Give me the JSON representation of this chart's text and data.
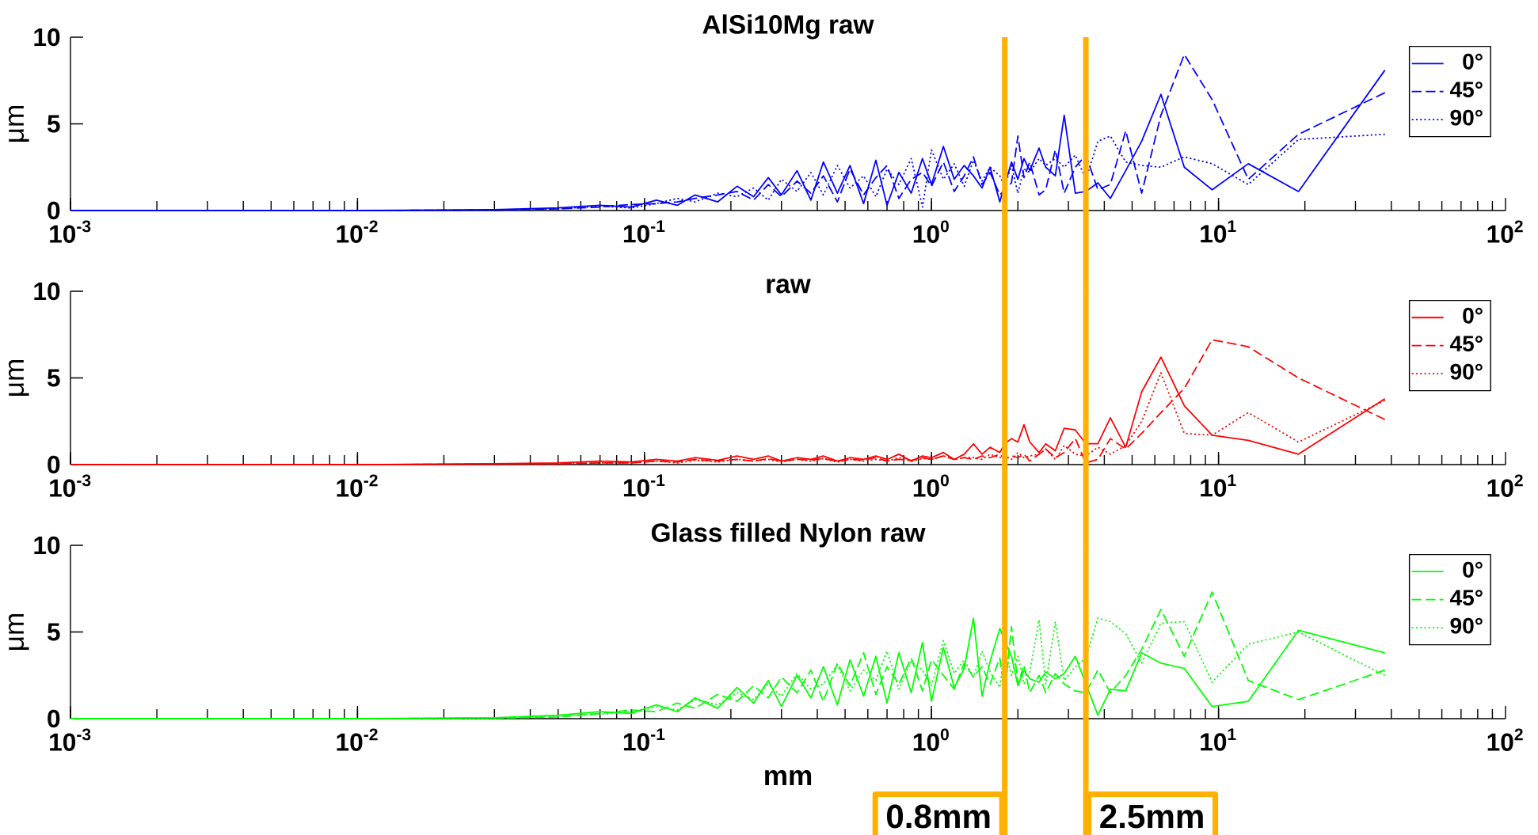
{
  "chart_data": [
    {
      "type": "line",
      "title": "AlSi10Mg raw",
      "ylabel": "μm",
      "log": "x",
      "legend": "top right",
      "xlim": [
        0.001,
        100
      ],
      "ylim": [
        0,
        10
      ],
      "xticks": [
        {
          "value": 0.001,
          "label": "10$^{-3}$"
        },
        {
          "value": 0.01,
          "label": "10$^{-2}$"
        },
        {
          "value": 0.1,
          "label": "10$^{-1}$"
        },
        {
          "value": 1,
          "label": "10$^{0}$"
        },
        {
          "value": 10,
          "label": "10$^{1}$"
        },
        {
          "value": 100,
          "label": "10$^{2}$"
        }
      ],
      "yticks": [
        0,
        5,
        10
      ],
      "x": [
        0.001,
        0.01,
        0.03,
        0.05,
        0.07,
        0.09,
        0.11,
        0.13,
        0.15,
        0.18,
        0.21,
        0.24,
        0.27,
        0.3,
        0.34,
        0.38,
        0.42,
        0.47,
        0.52,
        0.58,
        0.64,
        0.7,
        0.77,
        0.85,
        0.93,
        1.0,
        1.1,
        1.2,
        1.3,
        1.4,
        1.5,
        1.6,
        1.73,
        1.8,
        1.9,
        2.0,
        2.1,
        2.2,
        2.37,
        2.5,
        2.7,
        2.9,
        3.17,
        3.45,
        3.8,
        4.2,
        4.75,
        5.4,
        6.3,
        7.6,
        9.5,
        12.7,
        19,
        38
      ],
      "series": [
        {
          "name": "0°",
          "color": "#0000ff",
          "line_style": "solid",
          "values": [
            0,
            0,
            0.05,
            0.15,
            0.3,
            0.2,
            0.6,
            0.3,
            0.9,
            0.5,
            1.4,
            0.8,
            1.9,
            0.9,
            2.3,
            0.6,
            2.8,
            1.0,
            2.6,
            0.4,
            2.9,
            0.3,
            2.2,
            1.0,
            3.0,
            1.5,
            3.7,
            1.8,
            2.6,
            2.0,
            1.3,
            2.5,
            0.5,
            null,
            2.8,
            1.8,
            3.0,
            2.3,
            3.6,
            2.5,
            2.0,
            5.5,
            1.0,
            1.1,
            1.6,
            0.7,
            2.3,
            4.0,
            6.7,
            2.5,
            1.2,
            2.7,
            1.1,
            8.1
          ]
        },
        {
          "name": "45°",
          "color": "#0000ff",
          "line_style": "dashed",
          "values": [
            0,
            0,
            0.03,
            0.1,
            0.2,
            0.35,
            0.4,
            0.5,
            0.7,
            0.9,
            1.1,
            0.6,
            1.5,
            0.8,
            1.7,
            1.0,
            2.0,
            0.5,
            2.4,
            0.9,
            1.9,
            2.6,
            0.7,
            1.8,
            2.2,
            1.4,
            2.8,
            1.1,
            2.0,
            3.1,
            1.5,
            2.2,
            0.9,
            null,
            1.6,
            4.3,
            1.9,
            2.8,
            0.9,
            1.2,
            3.5,
            1.0,
            2.5,
            3.2,
            1.2,
            1.5,
            4.6,
            1.0,
            5.5,
            9.0,
            6.4,
            1.8,
            4.4,
            6.8
          ]
        },
        {
          "name": "90°",
          "color": "#0000ff",
          "line_style": "dotted",
          "values": [
            0,
            0,
            0.02,
            0.1,
            0.25,
            0.15,
            0.4,
            0.7,
            0.5,
            1.0,
            0.8,
            1.3,
            0.6,
            1.8,
            1.1,
            2.2,
            0.9,
            2.6,
            1.3,
            2.0,
            0.8,
            2.4,
            1.5,
            3.0,
            0.2,
            3.5,
            1.8,
            2.7,
            1.4,
            2.9,
            1.7,
            2.5,
            2.0,
            1.4,
            2.6,
            1.0,
            2.4,
            2.2,
            3.0,
            2.6,
            3.0,
            2.5,
            3.2,
            1.8,
            4.0,
            4.3,
            2.8,
            2.6,
            2.5,
            3.1,
            2.7,
            1.5,
            4.1,
            4.4
          ]
        }
      ],
      "ref_lines": [
        {
          "axis": "x",
          "value": 1.8,
          "color": "#ffb000"
        },
        {
          "axis": "x",
          "value": 3.45,
          "color": "#ffb000"
        }
      ]
    },
    {
      "type": "line",
      "title": "raw",
      "ylabel": "μm",
      "log": "x",
      "legend": "top right",
      "xlim": [
        0.001,
        100
      ],
      "ylim": [
        0,
        10
      ],
      "xticks": [
        {
          "value": 0.001,
          "label": "10$^{-3}$"
        },
        {
          "value": 0.01,
          "label": "10$^{-2}$"
        },
        {
          "value": 0.1,
          "label": "10$^{-1}$"
        },
        {
          "value": 1,
          "label": "10$^{0}$"
        },
        {
          "value": 10,
          "label": "10$^{1}$"
        },
        {
          "value": 100,
          "label": "10$^{2}$"
        }
      ],
      "yticks": [
        0,
        5,
        10
      ],
      "x": [
        0.001,
        0.01,
        0.03,
        0.05,
        0.07,
        0.09,
        0.11,
        0.13,
        0.15,
        0.18,
        0.21,
        0.24,
        0.27,
        0.3,
        0.34,
        0.38,
        0.42,
        0.47,
        0.52,
        0.58,
        0.64,
        0.7,
        0.77,
        0.85,
        0.93,
        1.0,
        1.1,
        1.2,
        1.3,
        1.4,
        1.5,
        1.6,
        1.73,
        1.8,
        1.9,
        2.0,
        2.1,
        2.2,
        2.37,
        2.5,
        2.7,
        2.9,
        3.17,
        3.45,
        3.8,
        4.2,
        4.75,
        5.4,
        6.3,
        7.6,
        9.5,
        12.7,
        19,
        38
      ],
      "series": [
        {
          "name": "0°",
          "color": "#ff0000",
          "line_style": "solid",
          "values": [
            0,
            0,
            0.05,
            0.1,
            0.2,
            0.15,
            0.3,
            0.2,
            0.4,
            0.25,
            0.5,
            0.3,
            0.5,
            0.2,
            0.4,
            0.3,
            0.5,
            0.2,
            0.4,
            0.3,
            0.5,
            0.3,
            0.6,
            0.2,
            0.5,
            0.4,
            0.7,
            0.3,
            0.6,
            1.2,
            0.6,
            1.0,
            0.7,
            1.2,
            1.5,
            1.3,
            2.3,
            1.3,
            0.7,
            1.2,
            0.8,
            2.1,
            2.0,
            1.2,
            1.2,
            2.7,
            1.0,
            4.2,
            6.2,
            3.4,
            1.7,
            1.4,
            0.6,
            3.8
          ]
        },
        {
          "name": "45°",
          "color": "#ff0000",
          "line_style": "dashed",
          "values": [
            0,
            0,
            0.03,
            0.05,
            0.1,
            0.1,
            0.2,
            0.15,
            0.3,
            0.2,
            0.3,
            0.2,
            0.35,
            0.2,
            0.3,
            0.25,
            0.35,
            0.2,
            0.3,
            0.25,
            0.4,
            0.2,
            0.3,
            0.25,
            0.4,
            0.3,
            0.5,
            0.3,
            0.4,
            0.3,
            0.5,
            0.4,
            0.6,
            0.3,
            0.5,
            0.4,
            0.6,
            0.2,
            0.6,
            0.9,
            0.4,
            0.7,
            1.5,
            0.1,
            0.3,
            1.5,
            0.9,
            1.8,
            3.0,
            4.4,
            7.2,
            6.8,
            5.0,
            2.6
          ]
        },
        {
          "name": "90°",
          "color": "#ff0000",
          "line_style": "dotted",
          "values": [
            0,
            0,
            0.02,
            0.05,
            0.1,
            0.1,
            0.2,
            0.1,
            0.25,
            0.15,
            0.3,
            0.2,
            0.3,
            0.15,
            0.3,
            0.2,
            0.35,
            0.15,
            0.3,
            0.2,
            0.3,
            0.2,
            0.4,
            0.2,
            0.35,
            0.3,
            0.5,
            0.3,
            0.4,
            0.4,
            0.3,
            0.6,
            0.4,
            0.5,
            0.3,
            0.7,
            0.4,
            0.5,
            0.6,
            0.9,
            0.3,
            1.1,
            0.6,
            0.5,
            1.0,
            0.6,
            1.1,
            2.5,
            5.3,
            1.8,
            1.7,
            3.0,
            1.3,
            3.7
          ]
        }
      ],
      "ref_lines": [
        {
          "axis": "x",
          "value": 1.8,
          "color": "#ffb000"
        },
        {
          "axis": "x",
          "value": 3.45,
          "color": "#ffb000"
        }
      ]
    },
    {
      "type": "line",
      "title": "Glass filled Nylon raw",
      "xlabel": "mm",
      "ylabel": "μm",
      "log": "x",
      "legend": "top right",
      "xlim": [
        0.001,
        100
      ],
      "ylim": [
        0,
        10
      ],
      "xticks": [
        {
          "value": 0.001,
          "label": "10$^{-3}$"
        },
        {
          "value": 0.01,
          "label": "10$^{-2}$"
        },
        {
          "value": 0.1,
          "label": "10$^{-1}$"
        },
        {
          "value": 1,
          "label": "10$^{0}$"
        },
        {
          "value": 10,
          "label": "10$^{1}$"
        },
        {
          "value": 100,
          "label": "10$^{2}$"
        }
      ],
      "yticks": [
        0,
        5,
        10
      ],
      "x": [
        0.001,
        0.01,
        0.03,
        0.05,
        0.07,
        0.09,
        0.11,
        0.13,
        0.15,
        0.18,
        0.21,
        0.24,
        0.27,
        0.3,
        0.34,
        0.38,
        0.42,
        0.47,
        0.52,
        0.58,
        0.64,
        0.7,
        0.77,
        0.85,
        0.93,
        1.0,
        1.1,
        1.2,
        1.3,
        1.4,
        1.5,
        1.6,
        1.73,
        1.8,
        1.9,
        2.0,
        2.1,
        2.2,
        2.37,
        2.5,
        2.7,
        2.9,
        3.17,
        3.45,
        3.8,
        4.2,
        4.75,
        5.4,
        6.3,
        7.6,
        9.5,
        12.7,
        19,
        38
      ],
      "series": [
        {
          "name": "0°",
          "color": "#00ff00",
          "line_style": "solid",
          "values": [
            0,
            0,
            0.05,
            0.2,
            0.4,
            0.3,
            0.8,
            0.4,
            1.2,
            0.6,
            1.8,
            0.9,
            2.2,
            0.7,
            2.5,
            1.2,
            3.0,
            0.8,
            3.4,
            1.3,
            3.6,
            0.9,
            3.8,
            1.5,
            4.4,
            1.0,
            4.1,
            1.8,
            2.9,
            5.8,
            1.3,
            3.3,
            5.2,
            null,
            3.6,
            1.9,
            2.8,
            2.3,
            2.1,
            2.7,
            2.3,
            2.6,
            3.6,
            null,
            0.2,
            1.7,
            1.6,
            3.8,
            3.2,
            2.9,
            0.7,
            1.0,
            5.1,
            3.8
          ]
        },
        {
          "name": "45°",
          "color": "#00ff00",
          "line_style": "dashed",
          "values": [
            0,
            0,
            0.03,
            0.1,
            0.3,
            0.5,
            0.4,
            0.9,
            0.6,
            1.4,
            1.0,
            1.9,
            1.2,
            2.4,
            1.5,
            2.8,
            1.0,
            3.2,
            1.9,
            3.8,
            1.4,
            3.0,
            2.0,
            3.5,
            1.6,
            3.4,
            2.5,
            1.7,
            3.2,
            2.4,
            3.0,
            2.0,
            3.5,
            1.5,
            5.3,
            2.0,
            3.1,
            1.5,
            2.5,
            1.5,
            2.6,
            2.0,
            1.6,
            1.5,
            2.8,
            1.5,
            2.5,
            4.0,
            6.3,
            3.6,
            7.3,
            2.2,
            1.1,
            2.8
          ]
        },
        {
          "name": "90°",
          "color": "#00ff00",
          "line_style": "dotted",
          "values": [
            0,
            0,
            0.02,
            0.15,
            0.25,
            0.4,
            0.7,
            0.5,
            1.1,
            0.8,
            1.5,
            1.1,
            2.0,
            1.3,
            2.6,
            1.7,
            2.0,
            3.1,
            1.6,
            2.8,
            2.2,
            3.9,
            1.7,
            3.3,
            2.8,
            1.9,
            4.5,
            2.6,
            3.4,
            2.4,
            3.9,
            2.7,
            1.8,
            4.0,
            2.5,
            3.6,
            2.0,
            2.7,
            5.7,
            2.0,
            5.6,
            2.2,
            3.0,
            3.5,
            5.8,
            5.6,
            4.9,
            3.2,
            5.5,
            5.6,
            2.1,
            4.3,
            5.0,
            2.5
          ]
        }
      ],
      "ref_lines": [
        {
          "axis": "x",
          "value": 1.8,
          "label": "0.8mm",
          "color": "#ffb000"
        },
        {
          "axis": "x",
          "value": 3.45,
          "label": "2.5mm",
          "color": "#ffb000"
        }
      ]
    }
  ]
}
